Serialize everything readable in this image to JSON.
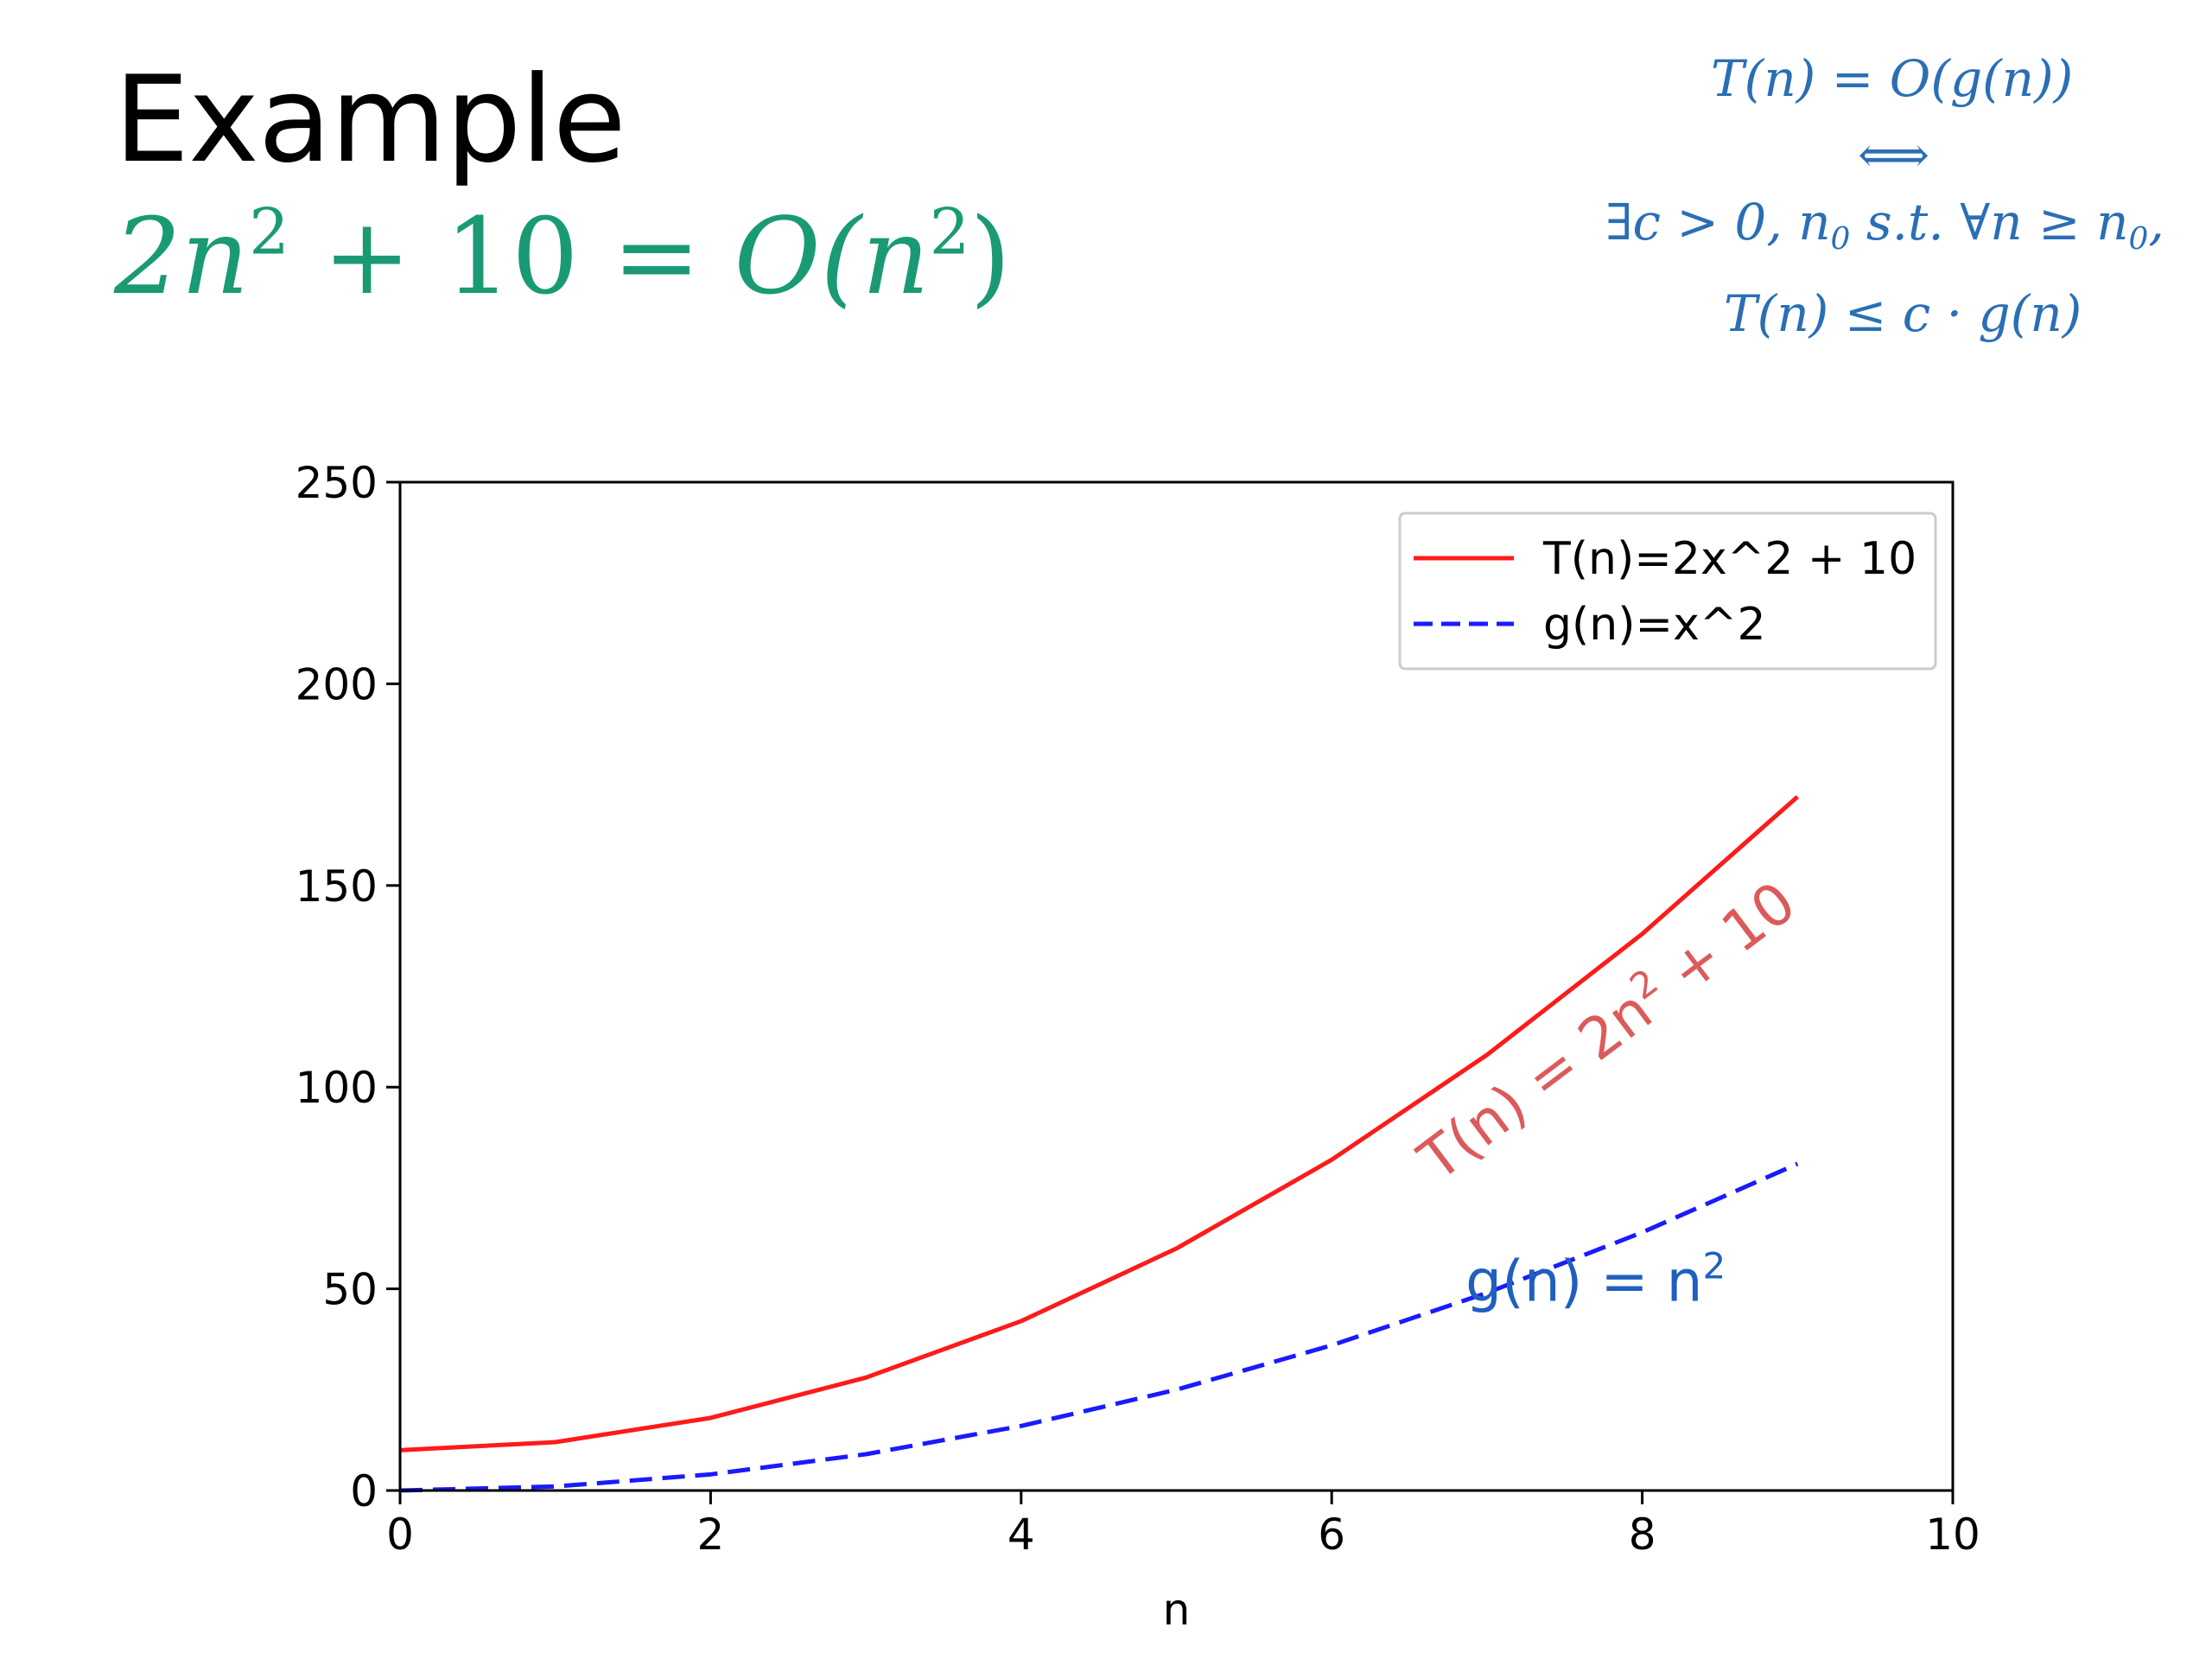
{
  "slide": {
    "title": "Example",
    "subtitle": {
      "a": "2n",
      "b": "2",
      "c": " + 10 = ",
      "d": "O",
      "e": "(n",
      "f": "2",
      "g": ")"
    },
    "definition": {
      "line1": "T(n) = O(g(n))",
      "line2": "⟺",
      "line3": "∃c > 0, n",
      "line3_sub": "0",
      "line3b": "  s.t.  ∀n ≥ n",
      "line3b_sub": "0",
      "line3c": ",",
      "line4": "T(n) ≤ c · g(n)"
    }
  },
  "colors": {
    "subtitle": "#1a9a74",
    "definition": "#2a6fb5",
    "series_T": "#ff1a1a",
    "series_g": "#1a1aff",
    "annot_T": "#dc5a5a",
    "annot_g": "#1f5fc0"
  },
  "chart_data": {
    "type": "line",
    "xlabel": "n",
    "ylabel": "",
    "xlim": [
      0,
      10
    ],
    "ylim": [
      0,
      250
    ],
    "xticks": [
      0,
      2,
      4,
      6,
      8,
      10
    ],
    "yticks": [
      0,
      50,
      100,
      150,
      200,
      250
    ],
    "grid": false,
    "legend_position": "top-right",
    "x": [
      0,
      1,
      2,
      3,
      4,
      5,
      6,
      7,
      8,
      9
    ],
    "series": [
      {
        "name": "T(n)=2x^2 + 10",
        "values": [
          10,
          12,
          18,
          28,
          42,
          60,
          82,
          108,
          138,
          172
        ],
        "style": "solid",
        "color_key": "series_T"
      },
      {
        "name": "g(n)=x^2",
        "values": [
          0,
          1,
          4,
          9,
          16,
          25,
          36,
          49,
          64,
          81
        ],
        "style": "dashed",
        "color_key": "series_g"
      }
    ],
    "annotations": [
      {
        "id": "annot-T",
        "pre": "T(n) = 2n",
        "sup": "2",
        "post": " + 10",
        "color_key": "annot_T",
        "anchor": [
          7.85,
          110
        ],
        "rotation_deg": -37
      },
      {
        "id": "annot-g",
        "pre": "g(n) = n",
        "sup": "2",
        "post": "",
        "color_key": "annot_g",
        "anchor": [
          7.7,
          47
        ],
        "rotation_deg": 0
      }
    ]
  }
}
